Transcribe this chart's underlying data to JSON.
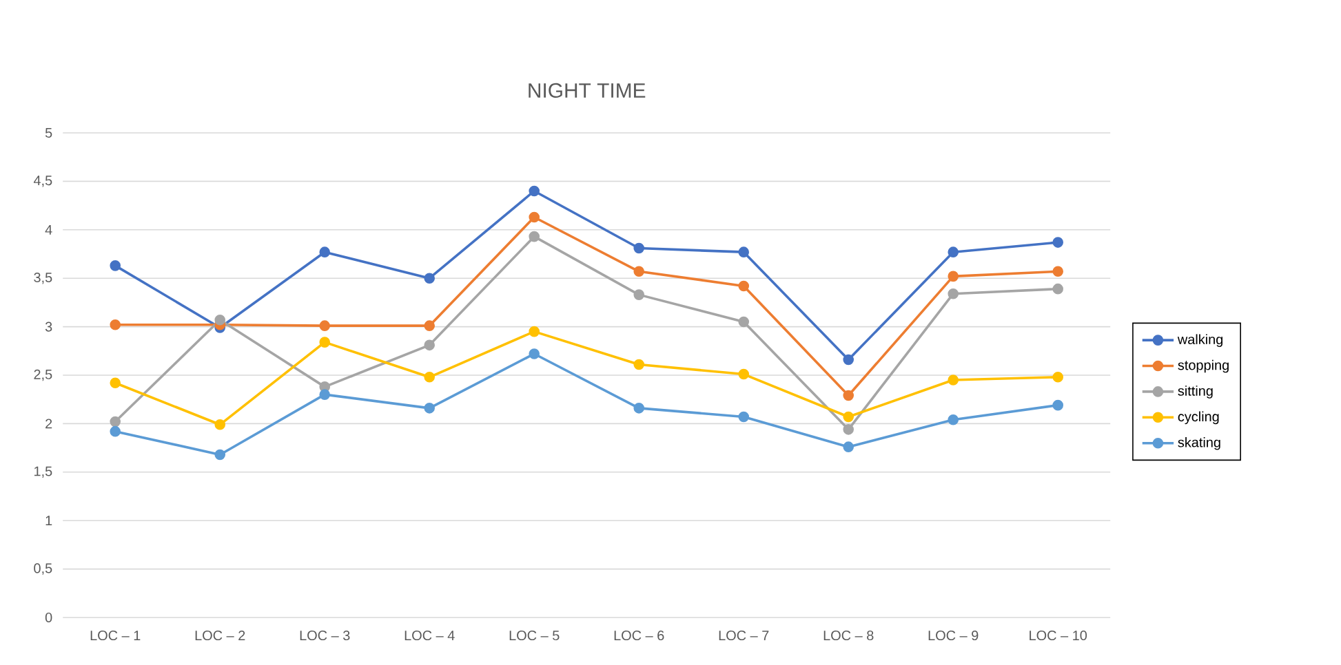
{
  "chart_data": {
    "type": "line",
    "title": "NIGHT TIME",
    "categories": [
      "LOC – 1",
      "LOC – 2",
      "LOC – 3",
      "LOC – 4",
      "LOC – 5",
      "LOC – 6",
      "LOC – 7",
      "LOC – 8",
      "LOC – 9",
      "LOC – 10"
    ],
    "series": [
      {
        "name": "walking",
        "color": "#4472c4",
        "values": [
          3.63,
          2.99,
          3.77,
          3.5,
          4.4,
          3.81,
          3.77,
          2.66,
          3.77,
          3.87
        ]
      },
      {
        "name": "stopping",
        "color": "#ed7d31",
        "values": [
          3.02,
          3.02,
          3.01,
          3.01,
          4.13,
          3.57,
          3.42,
          2.29,
          3.52,
          3.57
        ]
      },
      {
        "name": "sitting",
        "color": "#a5a5a5",
        "values": [
          2.02,
          3.07,
          2.38,
          2.81,
          3.93,
          3.33,
          3.05,
          1.94,
          3.34,
          3.39
        ]
      },
      {
        "name": "cycling",
        "color": "#ffc000",
        "values": [
          2.42,
          1.99,
          2.84,
          2.48,
          2.95,
          2.61,
          2.51,
          2.07,
          2.45,
          2.48
        ]
      },
      {
        "name": "skating",
        "color": "#5b9bd5",
        "values": [
          1.92,
          1.68,
          2.3,
          2.16,
          2.72,
          2.16,
          2.07,
          1.76,
          2.04,
          2.19
        ]
      }
    ],
    "ylim": [
      0,
      5
    ],
    "yticks": [
      {
        "value": 0,
        "label": "0"
      },
      {
        "value": 0.5,
        "label": "0,5"
      },
      {
        "value": 1,
        "label": "1"
      },
      {
        "value": 1.5,
        "label": "1,5"
      },
      {
        "value": 2,
        "label": "2"
      },
      {
        "value": 2.5,
        "label": "2,5"
      },
      {
        "value": 3,
        "label": "3"
      },
      {
        "value": 3.5,
        "label": "3,5"
      },
      {
        "value": 4,
        "label": "4"
      },
      {
        "value": 4.5,
        "label": "4,5"
      },
      {
        "value": 5,
        "label": "5"
      }
    ],
    "grid": "y",
    "legend": "right",
    "marker": "circle",
    "line_style": "solid"
  }
}
